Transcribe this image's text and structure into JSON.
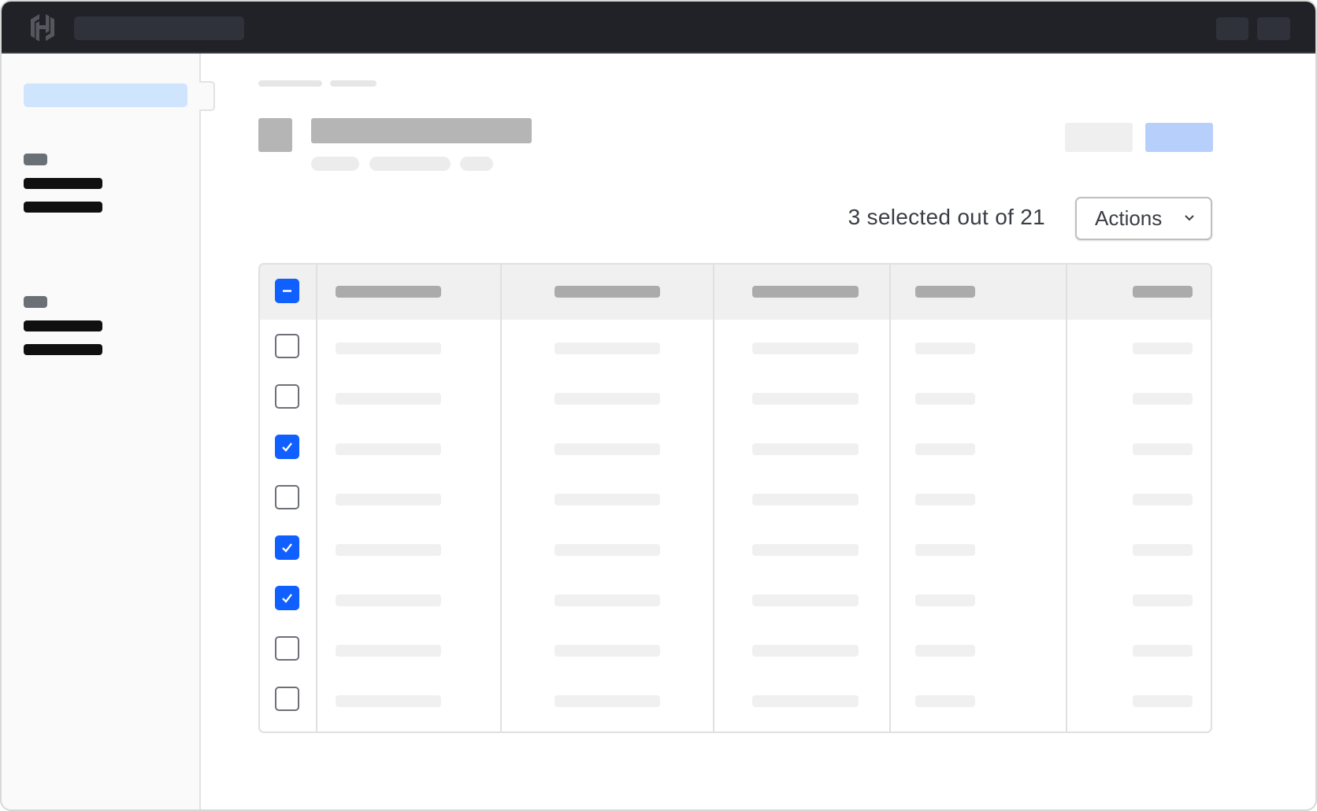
{
  "selection": {
    "summary": "3 selected out of 21"
  },
  "actions_button": {
    "label": "Actions",
    "icon": "chevron-down-icon"
  },
  "colors": {
    "accent": "#1060ff",
    "topbar": "#212227",
    "sidebar_active": "#cfe4fd",
    "primary_button": "#b6d0fb"
  },
  "logo": {
    "name": "hashicorp-logo-icon"
  },
  "table": {
    "header_checkbox": "indeterminate",
    "columns": 5,
    "rows": [
      {
        "checked": false
      },
      {
        "checked": false
      },
      {
        "checked": true
      },
      {
        "checked": false
      },
      {
        "checked": true
      },
      {
        "checked": true
      },
      {
        "checked": false
      },
      {
        "checked": false
      }
    ]
  }
}
